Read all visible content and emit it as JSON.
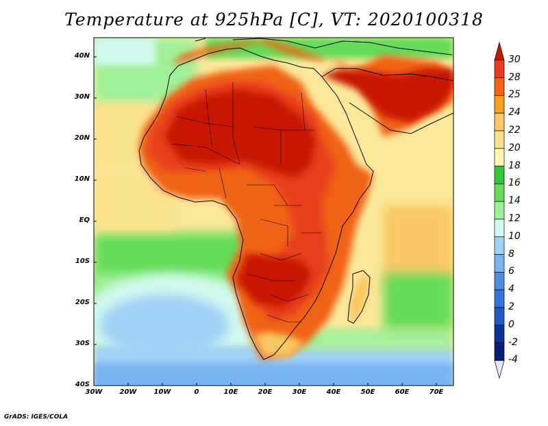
{
  "title": "Temperature at 925hPa [C], VT: 2020100318",
  "credit": "GrADS: IGES/COLA",
  "map": {
    "region": "Africa",
    "lat_labels": [
      "40N",
      "30N",
      "20N",
      "10N",
      "EQ",
      "10S",
      "20S",
      "30S",
      "40S"
    ],
    "lon_labels": [
      "30W",
      "20W",
      "10W",
      "0",
      "10E",
      "20E",
      "30E",
      "40E",
      "50E",
      "60E",
      "70E"
    ],
    "land_color": "#e8401c",
    "ocean_color": "#fbe89a"
  },
  "colorbar": {
    "levels": [
      "30",
      "28",
      "25",
      "24",
      "22",
      "20",
      "18",
      "16",
      "14",
      "12",
      "10",
      "8",
      "6",
      "4",
      "2",
      "0",
      "-2",
      "-4"
    ],
    "colors": [
      "#c81400",
      "#e8401c",
      "#f06414",
      "#f5a01e",
      "#fac864",
      "#fae18c",
      "#fff5b4",
      "#32c83c",
      "#64dc5a",
      "#a0f09a",
      "#d2faf0",
      "#a0d2f5",
      "#78b4f0",
      "#508cdc",
      "#3278dc",
      "#1e5ac8",
      "#0a3296",
      "#0a1e78",
      "#e6e6fa"
    ]
  }
}
